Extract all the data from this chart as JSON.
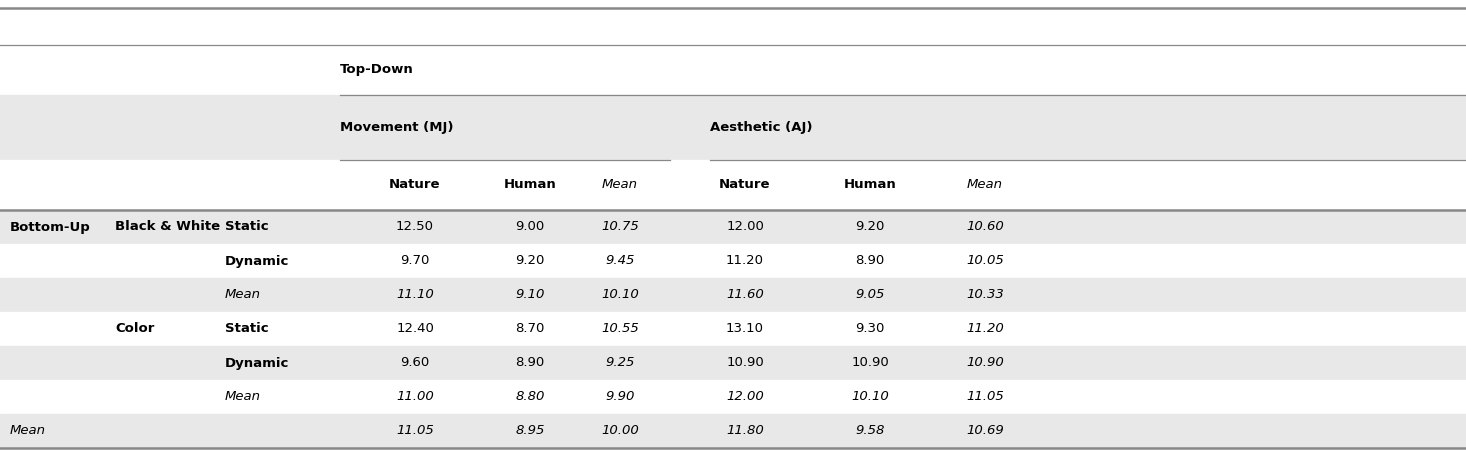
{
  "header_topdown": "Top-Down",
  "header_movement": "Movement (MJ)",
  "header_aesthetic": "Aesthetic (AJ)",
  "col_headers": [
    "Nature",
    "Human",
    "Mean",
    "Nature",
    "Human",
    "Mean"
  ],
  "row_data": [
    {
      "col0": "Bottom-Up",
      "col1": "Black & White",
      "col2": "Static",
      "vals": [
        "12.50",
        "9.00",
        "10.75",
        "12.00",
        "9.20",
        "10.60"
      ],
      "bg": "#e8e8e8",
      "italic_row": false
    },
    {
      "col0": "",
      "col1": "",
      "col2": "Dynamic",
      "vals": [
        "9.70",
        "9.20",
        "9.45",
        "11.20",
        "8.90",
        "10.05"
      ],
      "bg": "#ffffff",
      "italic_row": false
    },
    {
      "col0": "",
      "col1": "",
      "col2": "Mean",
      "vals": [
        "11.10",
        "9.10",
        "10.10",
        "11.60",
        "9.05",
        "10.33"
      ],
      "bg": "#e8e8e8",
      "italic_row": true
    },
    {
      "col0": "",
      "col1": "Color",
      "col2": "Static",
      "vals": [
        "12.40",
        "8.70",
        "10.55",
        "13.10",
        "9.30",
        "11.20"
      ],
      "bg": "#ffffff",
      "italic_row": false
    },
    {
      "col0": "",
      "col1": "",
      "col2": "Dynamic",
      "vals": [
        "9.60",
        "8.90",
        "9.25",
        "10.90",
        "10.90",
        "10.90"
      ],
      "bg": "#e8e8e8",
      "italic_row": false
    },
    {
      "col0": "",
      "col1": "",
      "col2": "Mean",
      "vals": [
        "11.00",
        "8.80",
        "9.90",
        "12.00",
        "10.10",
        "11.05"
      ],
      "bg": "#ffffff",
      "italic_row": true
    },
    {
      "col0": "Mean",
      "col1": "",
      "col2": "",
      "vals": [
        "11.05",
        "8.95",
        "10.00",
        "11.80",
        "9.58",
        "10.69"
      ],
      "bg": "#e8e8e8",
      "italic_row": true
    }
  ],
  "figsize": [
    14.66,
    4.53
  ],
  "dpi": 100,
  "line_color": "#888888",
  "bg_gray": "#e8e8e8",
  "bg_white": "#ffffff",
  "fs": 9.5
}
